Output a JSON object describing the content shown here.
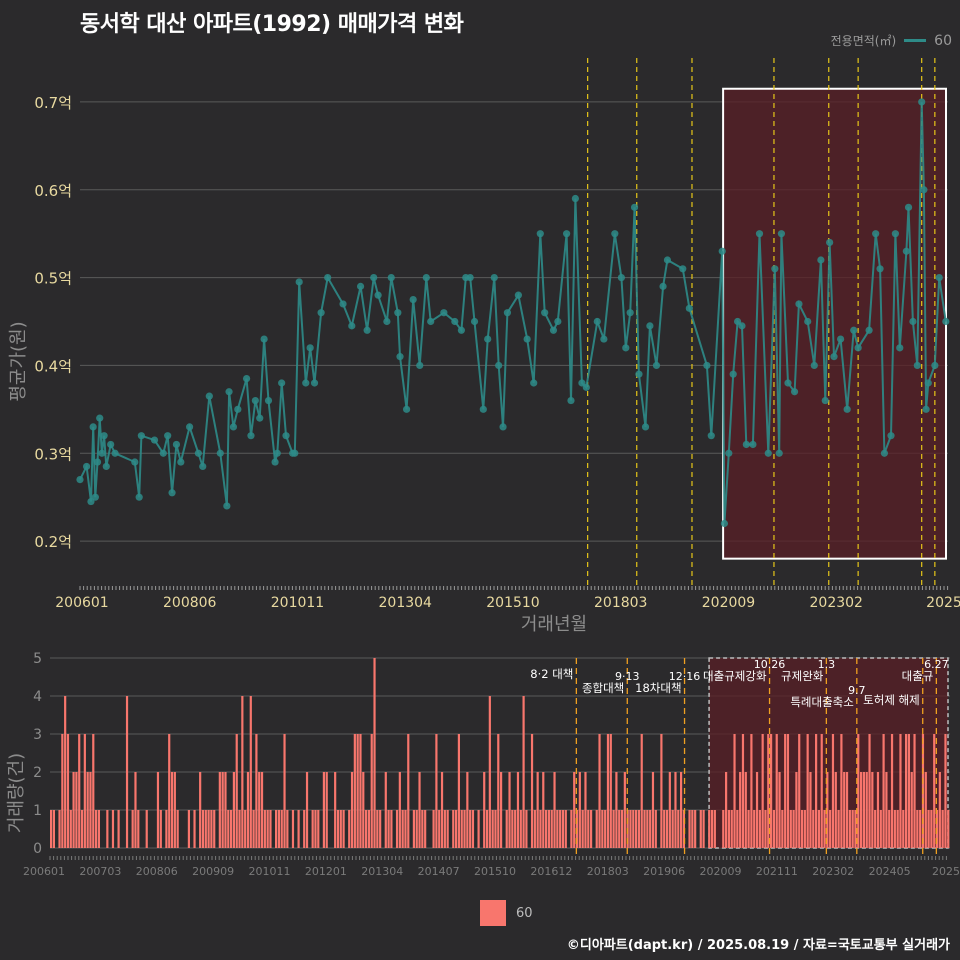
{
  "title": "동서학 대산 아파트(1992) 매매가격 변화",
  "footer": "©디아파트(dapt.kr) / 2025.08.19 / 자료=국토교통부 실거래가",
  "colors": {
    "background": "#2b2a2c",
    "line": "#2e8b88",
    "bar": "#f8766d",
    "grid": "#5a5a5a",
    "policy_line": "#e6c619",
    "policy_line_bottom": "#f0a020",
    "highlight_fill": "#5a1f25",
    "highlight_border": "#ffffff",
    "axis_text": "#e8d9a0",
    "label_text": "#8c8c8c"
  },
  "legend_top": {
    "title": "전용면적(㎡)",
    "label": "60"
  },
  "legend_bottom": {
    "label": "60"
  },
  "chart_data": [
    {
      "type": "line",
      "ylabel": "평균가(원)",
      "xlabel": "거래년월",
      "x_ticks": [
        "200601",
        "200806",
        "201011",
        "201304",
        "201510",
        "201803",
        "202009",
        "202302",
        "2025"
      ],
      "y_ticks": [
        "0.2억",
        "0.3억",
        "0.4억",
        "0.5억",
        "0.6억",
        "0.7억"
      ],
      "y_tick_values": [
        0.2,
        0.3,
        0.4,
        0.5,
        0.6,
        0.7
      ],
      "ylim": [
        0.15,
        0.75
      ],
      "xlim": [
        2006.0,
        2025.8
      ],
      "series": [
        {
          "name": "60",
          "points": [
            [
              2006.0,
              0.27
            ],
            [
              2006.15,
              0.285
            ],
            [
              2006.25,
              0.245
            ],
            [
              2006.3,
              0.33
            ],
            [
              2006.35,
              0.25
            ],
            [
              2006.4,
              0.29
            ],
            [
              2006.45,
              0.34
            ],
            [
              2006.5,
              0.3
            ],
            [
              2006.55,
              0.32
            ],
            [
              2006.6,
              0.285
            ],
            [
              2006.7,
              0.31
            ],
            [
              2006.8,
              0.3
            ],
            [
              2007.25,
              0.29
            ],
            [
              2007.35,
              0.25
            ],
            [
              2007.4,
              0.32
            ],
            [
              2007.7,
              0.315
            ],
            [
              2007.9,
              0.3
            ],
            [
              2008.0,
              0.32
            ],
            [
              2008.1,
              0.255
            ],
            [
              2008.2,
              0.31
            ],
            [
              2008.3,
              0.29
            ],
            [
              2008.5,
              0.33
            ],
            [
              2008.7,
              0.3
            ],
            [
              2008.8,
              0.285
            ],
            [
              2008.95,
              0.365
            ],
            [
              2009.2,
              0.3
            ],
            [
              2009.35,
              0.24
            ],
            [
              2009.4,
              0.37
            ],
            [
              2009.5,
              0.33
            ],
            [
              2009.6,
              0.35
            ],
            [
              2009.8,
              0.385
            ],
            [
              2009.9,
              0.32
            ],
            [
              2010.0,
              0.36
            ],
            [
              2010.1,
              0.34
            ],
            [
              2010.2,
              0.43
            ],
            [
              2010.3,
              0.36
            ],
            [
              2010.45,
              0.29
            ],
            [
              2010.5,
              0.3
            ],
            [
              2010.6,
              0.38
            ],
            [
              2010.7,
              0.32
            ],
            [
              2010.85,
              0.3
            ],
            [
              2010.9,
              0.3
            ],
            [
              2011.0,
              0.495
            ],
            [
              2011.15,
              0.38
            ],
            [
              2011.25,
              0.42
            ],
            [
              2011.35,
              0.38
            ],
            [
              2011.5,
              0.46
            ],
            [
              2011.65,
              0.5
            ],
            [
              2012.0,
              0.47
            ],
            [
              2012.2,
              0.445
            ],
            [
              2012.4,
              0.49
            ],
            [
              2012.55,
              0.44
            ],
            [
              2012.7,
              0.5
            ],
            [
              2012.8,
              0.48
            ],
            [
              2013.0,
              0.45
            ],
            [
              2013.1,
              0.5
            ],
            [
              2013.25,
              0.46
            ],
            [
              2013.3,
              0.41
            ],
            [
              2013.45,
              0.35
            ],
            [
              2013.6,
              0.475
            ],
            [
              2013.75,
              0.4
            ],
            [
              2013.9,
              0.5
            ],
            [
              2014.0,
              0.45
            ],
            [
              2014.3,
              0.46
            ],
            [
              2014.55,
              0.45
            ],
            [
              2014.7,
              0.44
            ],
            [
              2014.8,
              0.5
            ],
            [
              2014.9,
              0.5
            ],
            [
              2015.0,
              0.45
            ],
            [
              2015.2,
              0.35
            ],
            [
              2015.3,
              0.43
            ],
            [
              2015.45,
              0.5
            ],
            [
              2015.55,
              0.4
            ],
            [
              2015.65,
              0.33
            ],
            [
              2015.75,
              0.46
            ],
            [
              2016.0,
              0.48
            ],
            [
              2016.2,
              0.43
            ],
            [
              2016.35,
              0.38
            ],
            [
              2016.5,
              0.55
            ],
            [
              2016.6,
              0.46
            ],
            [
              2016.8,
              0.44
            ],
            [
              2016.9,
              0.45
            ],
            [
              2017.1,
              0.55
            ],
            [
              2017.2,
              0.36
            ],
            [
              2017.3,
              0.59
            ],
            [
              2017.45,
              0.38
            ],
            [
              2017.55,
              0.375
            ],
            [
              2017.8,
              0.45
            ],
            [
              2017.95,
              0.43
            ],
            [
              2018.2,
              0.55
            ],
            [
              2018.35,
              0.5
            ],
            [
              2018.45,
              0.42
            ],
            [
              2018.55,
              0.46
            ],
            [
              2018.65,
              0.58
            ],
            [
              2018.75,
              0.39
            ],
            [
              2018.9,
              0.33
            ],
            [
              2019.0,
              0.445
            ],
            [
              2019.15,
              0.4
            ],
            [
              2019.3,
              0.49
            ],
            [
              2019.4,
              0.52
            ],
            [
              2019.75,
              0.51
            ],
            [
              2019.9,
              0.465
            ],
            [
              2020.3,
              0.4
            ],
            [
              2020.4,
              0.32
            ],
            [
              2020.65,
              0.53
            ],
            [
              2020.7,
              0.22
            ],
            [
              2020.8,
              0.3
            ],
            [
              2020.9,
              0.39
            ],
            [
              2021.0,
              0.45
            ],
            [
              2021.1,
              0.445
            ],
            [
              2021.2,
              0.31
            ],
            [
              2021.35,
              0.31
            ],
            [
              2021.5,
              0.55
            ],
            [
              2021.7,
              0.3
            ],
            [
              2021.85,
              0.51
            ],
            [
              2021.95,
              0.3
            ],
            [
              2022.0,
              0.55
            ],
            [
              2022.15,
              0.38
            ],
            [
              2022.3,
              0.37
            ],
            [
              2022.4,
              0.47
            ],
            [
              2022.6,
              0.45
            ],
            [
              2022.75,
              0.4
            ],
            [
              2022.9,
              0.52
            ],
            [
              2023.0,
              0.36
            ],
            [
              2023.1,
              0.54
            ],
            [
              2023.2,
              0.41
            ],
            [
              2023.35,
              0.43
            ],
            [
              2023.5,
              0.35
            ],
            [
              2023.65,
              0.44
            ],
            [
              2023.75,
              0.42
            ],
            [
              2024.0,
              0.44
            ],
            [
              2024.15,
              0.55
            ],
            [
              2024.25,
              0.51
            ],
            [
              2024.35,
              0.3
            ],
            [
              2024.5,
              0.32
            ],
            [
              2024.6,
              0.55
            ],
            [
              2024.7,
              0.42
            ],
            [
              2024.85,
              0.53
            ],
            [
              2024.9,
              0.58
            ],
            [
              2025.0,
              0.45
            ],
            [
              2025.1,
              0.4
            ],
            [
              2025.2,
              0.7
            ],
            [
              2025.25,
              0.6
            ],
            [
              2025.3,
              0.35
            ],
            [
              2025.35,
              0.38
            ],
            [
              2025.5,
              0.4
            ],
            [
              2025.6,
              0.5
            ],
            [
              2025.75,
              0.45
            ]
          ]
        }
      ],
      "policy_lines_x": [
        2017.58,
        2018.7,
        2019.96,
        2021.83,
        2023.08,
        2023.75,
        2025.2,
        2025.5
      ],
      "highlight_range": {
        "x": [
          2020.67,
          2025.8
        ],
        "y": [
          0.18,
          0.715
        ]
      }
    },
    {
      "type": "bar",
      "ylabel": "거래량(건)",
      "x_ticks": [
        "200601",
        "200703",
        "200806",
        "200909",
        "201011",
        "201201",
        "201304",
        "201407",
        "201510",
        "201612",
        "201803",
        "201906",
        "202009",
        "202111",
        "202302",
        "202405",
        "2025"
      ],
      "y_ticks": [
        "0",
        "1",
        "2",
        "3",
        "4",
        "5"
      ],
      "y_tick_values": [
        0,
        1,
        2,
        3,
        4,
        5
      ],
      "ylim": [
        0,
        5
      ],
      "xlim": [
        2006.0,
        2025.8
      ],
      "series": [
        {
          "name": "60",
          "counts": [
            1,
            1,
            0,
            1,
            3,
            4,
            3,
            1,
            2,
            2,
            3,
            1,
            3,
            2,
            2,
            3,
            1,
            1,
            0,
            0,
            1,
            0,
            1,
            0,
            1,
            0,
            0,
            4,
            0,
            1,
            2,
            1,
            0,
            0,
            1,
            0,
            0,
            0,
            2,
            1,
            0,
            1,
            3,
            2,
            2,
            1,
            0,
            0,
            0,
            1,
            0,
            1,
            0,
            2,
            1,
            1,
            1,
            1,
            1,
            0,
            2,
            2,
            2,
            1,
            1,
            2,
            3,
            1,
            4,
            1,
            2,
            4,
            1,
            3,
            2,
            2,
            1,
            1,
            1,
            0,
            1,
            1,
            1,
            3,
            1,
            0,
            1,
            0,
            1,
            0,
            1,
            2,
            0,
            1,
            1,
            1,
            0,
            2,
            2,
            0,
            0,
            2,
            1,
            1,
            1,
            0,
            1,
            2,
            3,
            3,
            3,
            2,
            1,
            1,
            3,
            5,
            1,
            1,
            0,
            2,
            1,
            1,
            0,
            1,
            2,
            1,
            1,
            3,
            0,
            1,
            1,
            2,
            1,
            1,
            0,
            0,
            1,
            3,
            1,
            2,
            1,
            1,
            0,
            1,
            1,
            3,
            1,
            1,
            2,
            1,
            1,
            0,
            1,
            0,
            2,
            1,
            4,
            1,
            1,
            3,
            2,
            0,
            1,
            2,
            1,
            1,
            2,
            1,
            4,
            1,
            0,
            3,
            1,
            2,
            1,
            2,
            1,
            1,
            1,
            2,
            1,
            1,
            1,
            1,
            0,
            1,
            2,
            1,
            2,
            1,
            2,
            1,
            1,
            0,
            1,
            3,
            1,
            1,
            3,
            3,
            1,
            2,
            1,
            1,
            2,
            1,
            1,
            1,
            1,
            1,
            3,
            1,
            1,
            1,
            2,
            1,
            0,
            3,
            1,
            1,
            2,
            1,
            2,
            1,
            2,
            1,
            0,
            1,
            1,
            1,
            0,
            1,
            1,
            0,
            1,
            1,
            1,
            0,
            0,
            1,
            2,
            1,
            1,
            3,
            1,
            2,
            3,
            2,
            1,
            3,
            1,
            2,
            1,
            3,
            1,
            3,
            3,
            1,
            3,
            2,
            1,
            3,
            3,
            1,
            1,
            2,
            3,
            1,
            1,
            3,
            2,
            1,
            3,
            1,
            3,
            1,
            2,
            1,
            3,
            2,
            1,
            3,
            2,
            2,
            1,
            1,
            1,
            3,
            2,
            2,
            2,
            3,
            2,
            1,
            2,
            1,
            3,
            2,
            1,
            3,
            1,
            1,
            3,
            1,
            3,
            3,
            2,
            3,
            1,
            1,
            3,
            2,
            1,
            1,
            3,
            1,
            2,
            1,
            3,
            1
          ]
        }
      ],
      "highlight_range": {
        "x": [
          2020.5,
          2025.8
        ],
        "y": [
          0,
          5
        ]
      },
      "policy_events": [
        {
          "x": 2017.58,
          "date": "",
          "label": "8·2 대책",
          "row": 0
        },
        {
          "x": 2018.7,
          "date": "9·13",
          "label": "종합대책",
          "row": 1
        },
        {
          "x": 2019.96,
          "date": "12·16",
          "label": "18차대책",
          "row": 1
        },
        {
          "x": 2021.83,
          "date": "10.26",
          "label": "대출규제강화",
          "row": 0
        },
        {
          "x": 2023.08,
          "date": "1.3",
          "label": "규제완화",
          "row": 0
        },
        {
          "x": 2023.75,
          "date": "9.7",
          "label": "특례대출축소",
          "row": 2
        },
        {
          "x": 2025.2,
          "date": "",
          "label": "토허제 해제",
          "row": 2
        },
        {
          "x": 2025.5,
          "date": "6.27",
          "label": "대출규",
          "row": 0
        }
      ]
    }
  ]
}
